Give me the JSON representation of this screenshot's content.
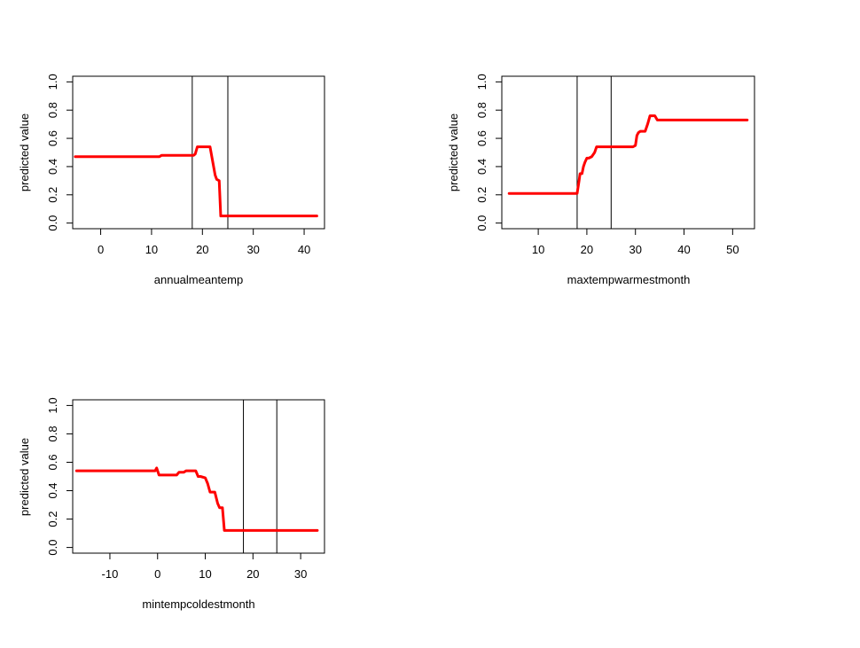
{
  "figure": {
    "background": "#ffffff",
    "line_color": "#ff0000",
    "vline_color": "#000000"
  },
  "chart_data": [
    {
      "type": "line",
      "xlabel": "annualmeantemp",
      "ylabel": "predicted value",
      "xlim": [
        -5.5,
        44
      ],
      "ylim": [
        -0.04,
        1.04
      ],
      "xticks": [
        0,
        10,
        20,
        30,
        40
      ],
      "yticks": [
        0.0,
        0.2,
        0.4,
        0.6,
        0.8,
        1.0
      ],
      "ytick_labels": [
        "0.0",
        "0.2",
        "0.4",
        "0.6",
        "0.8",
        "1.0"
      ],
      "vlines": [
        18,
        25
      ],
      "series": [
        {
          "x": [
            -5,
            10,
            10.5,
            11.5,
            12,
            18.3,
            18.6,
            19,
            21.5,
            21.8,
            22.2,
            22.5,
            22.8,
            23.3,
            23.6,
            24,
            42.5
          ],
          "y": [
            0.47,
            0.47,
            0.47,
            0.47,
            0.48,
            0.48,
            0.49,
            0.54,
            0.54,
            0.48,
            0.4,
            0.34,
            0.31,
            0.3,
            0.05,
            0.05,
            0.05
          ]
        }
      ]
    },
    {
      "type": "line",
      "xlabel": "maxtempwarmestmonth",
      "ylabel": "predicted value",
      "xlim": [
        2.5,
        54.5
      ],
      "ylim": [
        -0.04,
        1.04
      ],
      "xticks": [
        10,
        20,
        30,
        40,
        50
      ],
      "yticks": [
        0.0,
        0.2,
        0.4,
        0.6,
        0.8,
        1.0
      ],
      "ytick_labels": [
        "0.0",
        "0.2",
        "0.4",
        "0.6",
        "0.8",
        "1.0"
      ],
      "vlines": [
        18,
        25
      ],
      "series": [
        {
          "x": [
            4,
            18,
            18.4,
            18.6,
            19,
            19.3,
            19.6,
            20,
            20.4,
            21,
            21.6,
            22,
            22.5,
            29.5,
            30,
            30.3,
            30.6,
            31,
            32,
            32.5,
            33,
            34,
            34.5,
            35,
            53
          ],
          "y": [
            0.21,
            0.21,
            0.3,
            0.35,
            0.35,
            0.4,
            0.43,
            0.46,
            0.46,
            0.47,
            0.5,
            0.54,
            0.54,
            0.54,
            0.55,
            0.62,
            0.64,
            0.65,
            0.65,
            0.7,
            0.76,
            0.76,
            0.73,
            0.73,
            0.73
          ]
        }
      ]
    },
    {
      "type": "line",
      "xlabel": "mintempcoldestmonth",
      "ylabel": "predicted value",
      "xlim": [
        -17.8,
        35
      ],
      "ylim": [
        -0.04,
        1.04
      ],
      "xticks": [
        -10,
        0,
        10,
        20,
        30
      ],
      "yticks": [
        0.0,
        0.2,
        0.4,
        0.6,
        0.8,
        1.0
      ],
      "ytick_labels": [
        "0.0",
        "0.2",
        "0.4",
        "0.6",
        "0.8",
        "1.0"
      ],
      "vlines": [
        18,
        25
      ],
      "series": [
        {
          "x": [
            -17,
            -0.5,
            -0.2,
            0.3,
            4,
            4.5,
            5.5,
            6,
            7,
            8,
            8.5,
            9,
            10,
            10.5,
            11,
            12,
            12.6,
            13,
            13.6,
            14,
            33.5
          ],
          "y": [
            0.54,
            0.54,
            0.56,
            0.51,
            0.51,
            0.53,
            0.53,
            0.54,
            0.54,
            0.54,
            0.5,
            0.5,
            0.49,
            0.45,
            0.39,
            0.39,
            0.31,
            0.28,
            0.28,
            0.12,
            0.12
          ]
        }
      ]
    }
  ]
}
